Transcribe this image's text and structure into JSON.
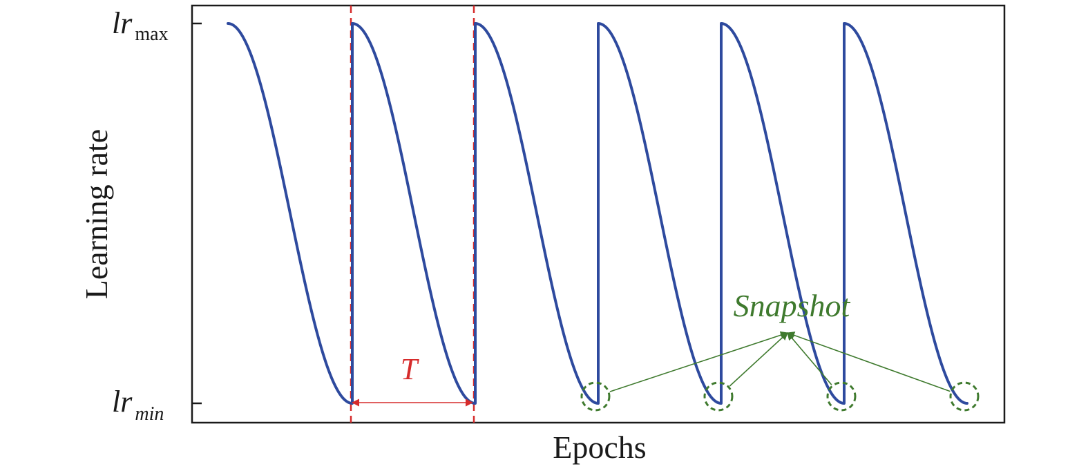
{
  "chart_data": {
    "type": "line",
    "title": "",
    "xlabel": "Epochs",
    "ylabel": "Learning rate",
    "ylim": [
      0,
      1
    ],
    "grid": false,
    "y_ticks": [
      {
        "main": "lr",
        "sub": "max",
        "sub_italic": false,
        "value": 1
      },
      {
        "main": "lr",
        "sub": "min",
        "sub_italic": true,
        "value": 0
      }
    ],
    "series": [
      {
        "color": "#2e4a9e",
        "schedule": "cosine annealing with warm restarts",
        "cycles": 6,
        "first_cycle_epochs": 180,
        "later_cycle_epochs": 178
      }
    ],
    "annotations": {
      "period": {
        "label": "T",
        "color": "#d62b2b",
        "from_restart": 1,
        "to_restart": 2
      },
      "snapshot": {
        "label": "Snapshot",
        "color": "#3f7a2e",
        "cycle_ends": [
          3,
          4,
          5,
          6
        ]
      }
    }
  }
}
